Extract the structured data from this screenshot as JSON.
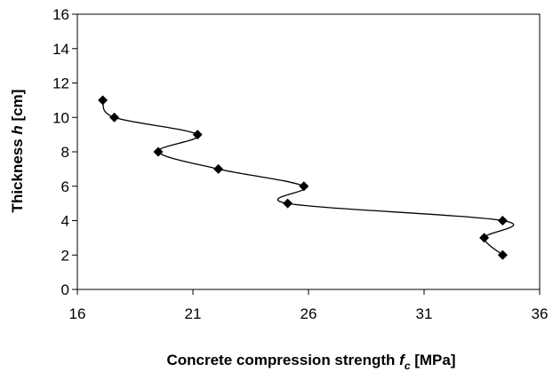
{
  "chart_data": {
    "type": "scatter",
    "title": "",
    "x_axis": {
      "label_parts": [
        "Concrete compression strength ",
        "f",
        "c",
        " [MPa]"
      ],
      "range": [
        16,
        36
      ],
      "ticks": [
        16,
        21,
        26,
        31,
        36
      ],
      "tick_labels": [
        "16",
        "21",
        "26",
        "31",
        "36"
      ]
    },
    "y_axis": {
      "label_parts": [
        "Thickness ",
        "h",
        " [cm]"
      ],
      "range": [
        0,
        16
      ],
      "ticks": [
        0,
        2,
        4,
        6,
        8,
        10,
        12,
        14,
        16
      ],
      "tick_labels": [
        "0",
        "2",
        "4",
        "6",
        "8",
        "10",
        "12",
        "14",
        "16"
      ]
    },
    "grid": false,
    "legend": "none",
    "series": [
      {
        "marker": "diamond",
        "line": "smoothed",
        "color": "#000000",
        "points": [
          {
            "x": 17.1,
            "y": 11
          },
          {
            "x": 17.6,
            "y": 10
          },
          {
            "x": 21.2,
            "y": 9
          },
          {
            "x": 19.5,
            "y": 8
          },
          {
            "x": 22.1,
            "y": 7
          },
          {
            "x": 25.8,
            "y": 6
          },
          {
            "x": 25.1,
            "y": 5
          },
          {
            "x": 34.4,
            "y": 4
          },
          {
            "x": 33.6,
            "y": 3
          },
          {
            "x": 34.4,
            "y": 2
          }
        ]
      }
    ]
  }
}
